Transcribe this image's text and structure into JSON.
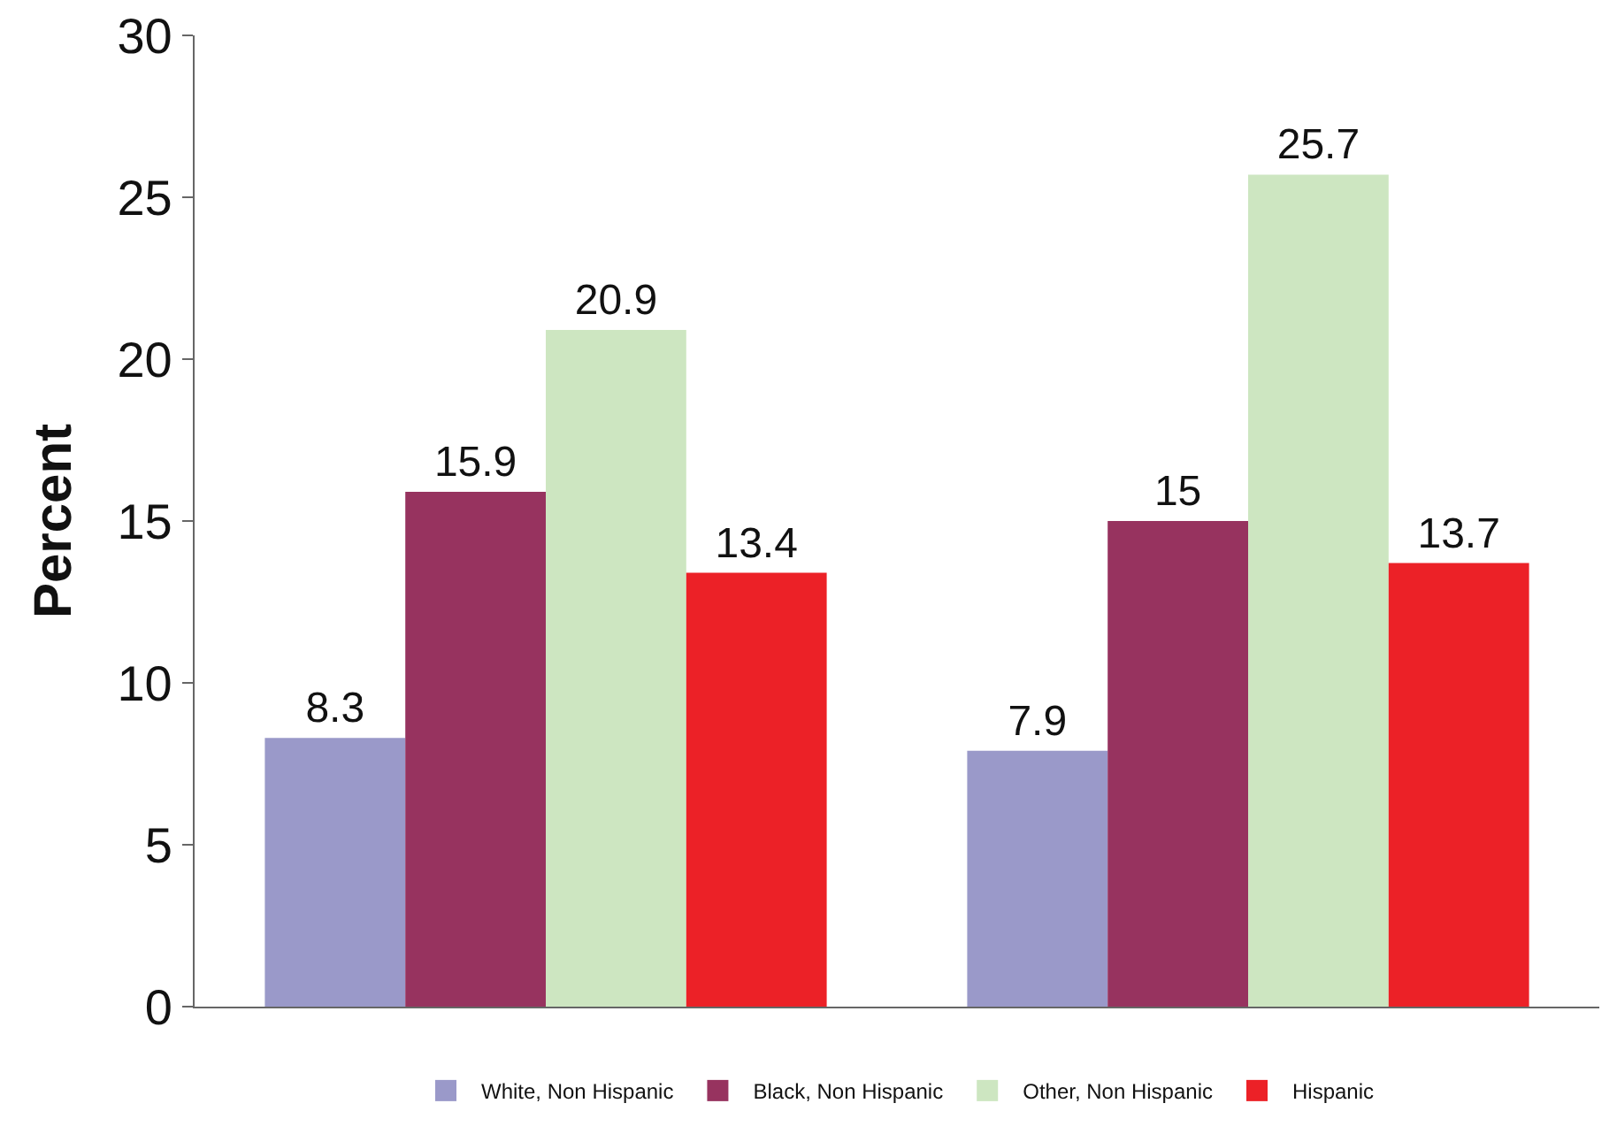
{
  "chart_data": {
    "type": "bar",
    "ylabel": "Percent",
    "categories": [
      null,
      null
    ],
    "series": [
      {
        "name": "White, Non Hispanic",
        "color": "#9a99c9",
        "values": [
          8.3,
          7.9
        ]
      },
      {
        "name": "Black, Non Hispanic",
        "color": "#97335f",
        "values": [
          15.9,
          15
        ]
      },
      {
        "name": "Other, Non Hispanic",
        "color": "#cde6c1",
        "values": [
          20.9,
          25.7
        ]
      },
      {
        "name": "Hispanic",
        "color": "#ec2127",
        "values": [
          13.4,
          13.7
        ]
      }
    ],
    "ylim": [
      0,
      30
    ],
    "yticks": [
      0,
      5,
      10,
      15,
      20,
      25,
      30
    ],
    "grid": false,
    "legend": "bottom",
    "data_labels": true
  }
}
